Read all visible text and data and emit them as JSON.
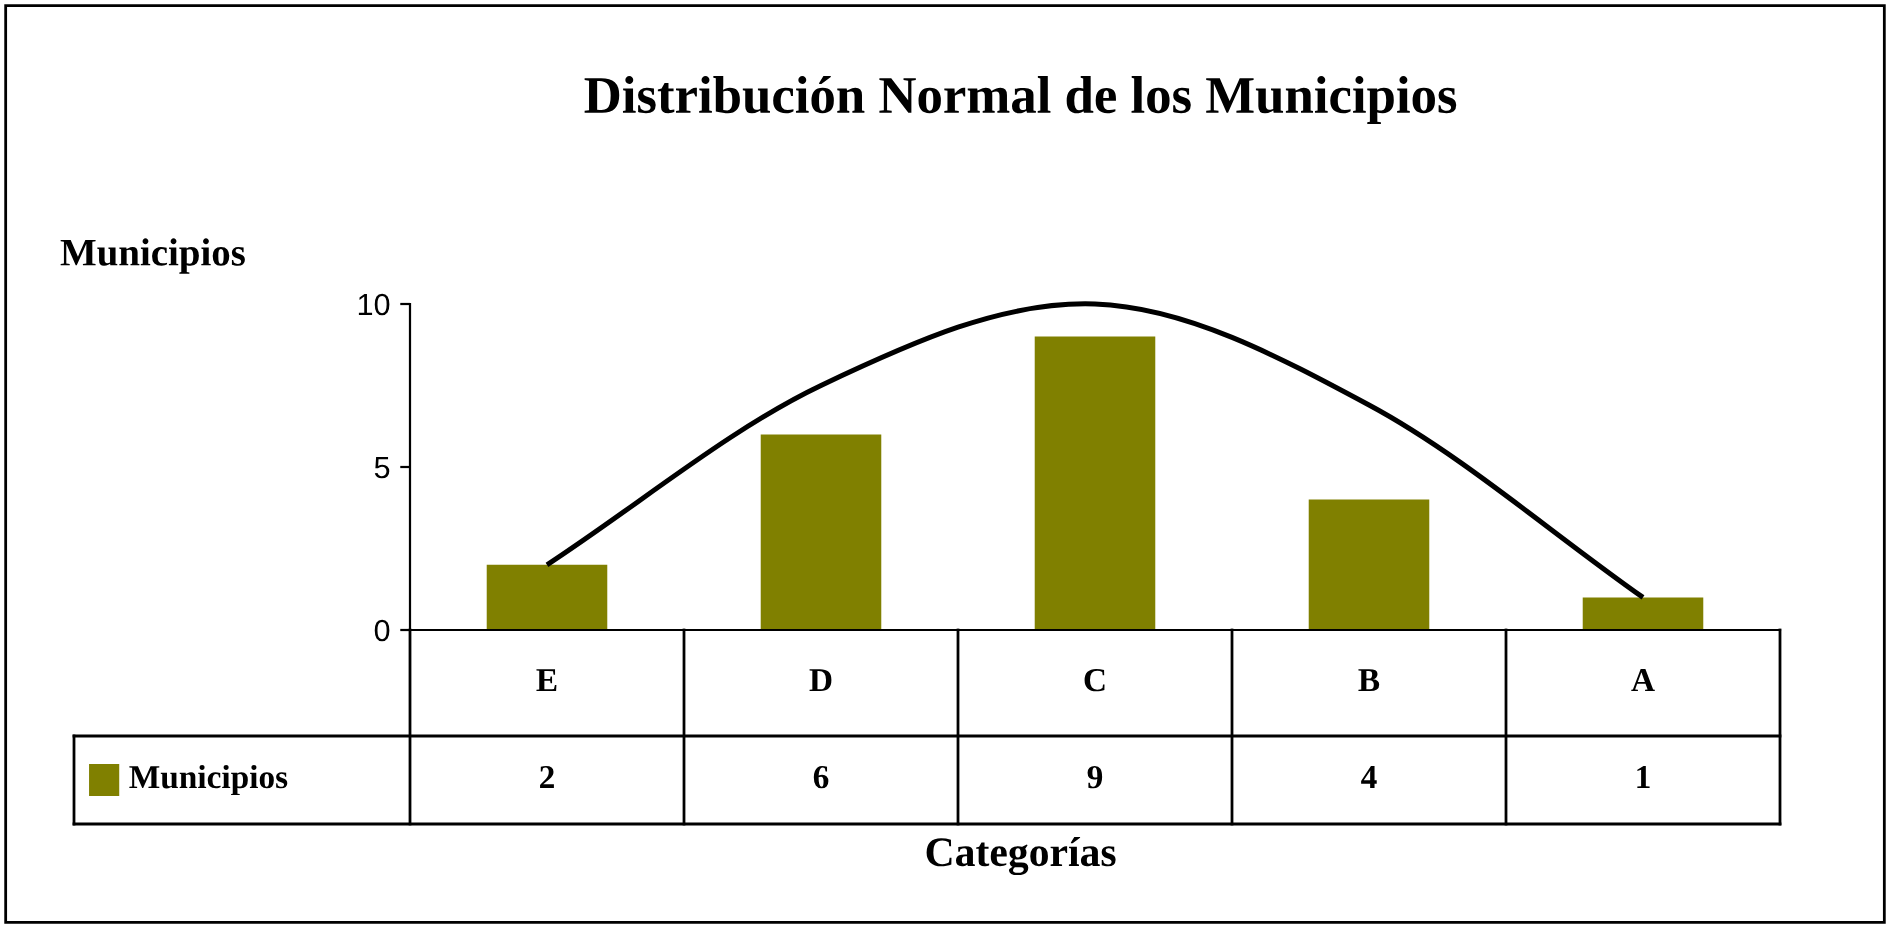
{
  "chart_data": {
    "type": "bar",
    "title": "Distribución Normal de los Municipios",
    "xlabel": "Categorías",
    "ylabel": "Municipios",
    "categories": [
      "E",
      "D",
      "C",
      "B",
      "A"
    ],
    "series": [
      {
        "name": "Municipios",
        "color": "#808000",
        "values": [
          2,
          6,
          9,
          4,
          1
        ],
        "value_labels": [
          "2",
          "6",
          "9",
          "4",
          "1"
        ]
      },
      {
        "type": "line",
        "color": "#000000",
        "values": [
          2,
          7.5,
          10,
          6.9,
          1
        ]
      }
    ],
    "ylim": [
      0,
      10
    ],
    "yticks": [
      0,
      5,
      10
    ],
    "grid": false,
    "legend": "bottom",
    "marker": "none",
    "line_style": "solid"
  }
}
